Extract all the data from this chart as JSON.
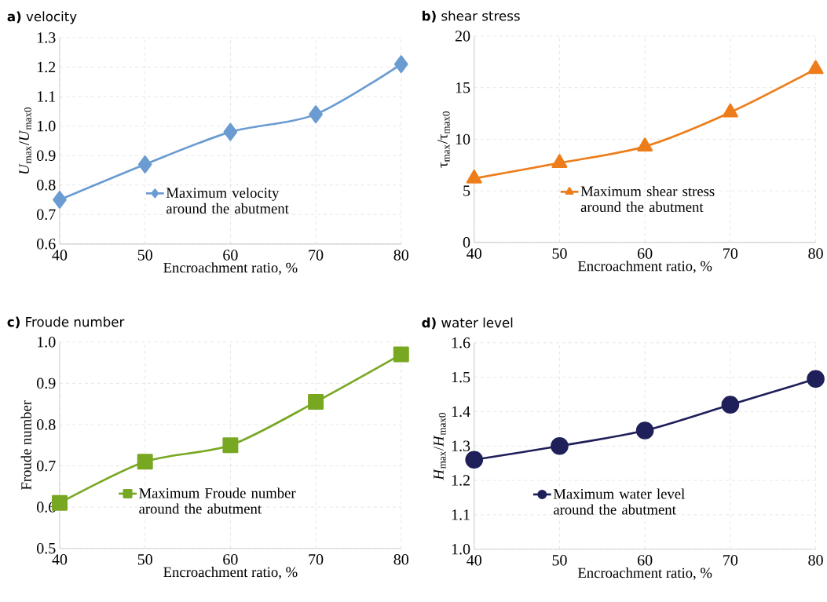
{
  "chart_data": [
    {
      "type": "line",
      "title": "**a)** velocity",
      "xlabel": "Encroachment ratio, %",
      "ylabel": "*U*$_{max}$/*U*$_{max0}$",
      "x": [
        40,
        50,
        60,
        70,
        80
      ],
      "xlim": [
        40,
        80
      ],
      "xticks": [
        40,
        50,
        60,
        70,
        80
      ],
      "ylim": [
        0.6,
        1.3
      ],
      "yticks": [
        {
          "value": 0.6,
          "label": "0.6"
        },
        {
          "value": 0.7,
          "label": "0.7"
        },
        {
          "value": 0.8,
          "label": "0.8"
        },
        {
          "value": 0.9,
          "label": "0.9"
        },
        {
          "value": 1.0,
          "label": "1.0"
        },
        {
          "value": 1.1,
          "label": "1.1"
        },
        {
          "value": 1.2,
          "label": "1.2"
        },
        {
          "value": 1.3,
          "label": "1.3"
        }
      ],
      "grid": true,
      "legend": "bottom right",
      "marker": "diamond",
      "series": [
        {
          "name": "Maximum velocity around the abutment",
          "color": "#6a9bd1",
          "values": [
            0.75,
            0.87,
            0.98,
            1.04,
            1.21
          ]
        }
      ]
    },
    {
      "type": "line",
      "title": "**b)** shear stress",
      "xlabel": "Encroachment ratio, %",
      "ylabel": "τ$_{max}$/τ$_{max0}$",
      "x": [
        40,
        50,
        60,
        70,
        80
      ],
      "xlim": [
        40,
        80
      ],
      "xticks": [
        40,
        50,
        60,
        70,
        80
      ],
      "ylim": [
        0,
        20
      ],
      "yticks": [
        0,
        5,
        10,
        15,
        20
      ],
      "grid": true,
      "legend": "bottom right",
      "marker": "triangle",
      "series": [
        {
          "name": "Maximum shear stress around the abutment",
          "color": "#ed7d1a",
          "values": [
            6.2,
            7.7,
            9.3,
            12.6,
            16.8
          ]
        }
      ]
    },
    {
      "type": "line",
      "title": "**c)** Froude number",
      "xlabel": "Encroachment ratio, %",
      "ylabel": "Froude number",
      "x": [
        40,
        50,
        60,
        70,
        80
      ],
      "xlim": [
        40,
        80
      ],
      "xticks": [
        40,
        50,
        60,
        70,
        80
      ],
      "ylim": [
        0.5,
        1.0
      ],
      "yticks": [
        {
          "value": 0.5,
          "label": "0.5"
        },
        {
          "value": 0.6,
          "label": "0.6"
        },
        {
          "value": 0.7,
          "label": "0.7"
        },
        {
          "value": 0.8,
          "label": "0.8"
        },
        {
          "value": 0.9,
          "label": "0.9"
        },
        {
          "value": 1.0,
          "label": "1.0"
        }
      ],
      "grid": true,
      "legend": "bottom",
      "marker": "square",
      "series": [
        {
          "name": "Maximum Froude number around the abutment",
          "color": "#78a822",
          "values": [
            0.61,
            0.71,
            0.75,
            0.855,
            0.97
          ]
        }
      ]
    },
    {
      "type": "line",
      "title": "**d)** water level",
      "xlabel": "Encroachment ratio, %",
      "ylabel": "*H*$_{max}$/*H*$_{max0}$",
      "x": [
        40,
        50,
        60,
        70,
        80
      ],
      "xlim": [
        40,
        80
      ],
      "xticks": [
        40,
        50,
        60,
        70,
        80
      ],
      "ylim": [
        1.0,
        1.6
      ],
      "yticks": [
        {
          "value": 1.0,
          "label": "1.0"
        },
        {
          "value": 1.1,
          "label": "1.1"
        },
        {
          "value": 1.2,
          "label": "1.2"
        },
        {
          "value": 1.3,
          "label": "1.3"
        },
        {
          "value": 1.4,
          "label": "1.4"
        },
        {
          "value": 1.5,
          "label": "1.5"
        },
        {
          "value": 1.6,
          "label": "1.6"
        }
      ],
      "grid": true,
      "legend": "bottom",
      "marker": "circle",
      "series": [
        {
          "name": "Maximum water level around the abutment",
          "color": "#1f1f5a",
          "values": [
            1.26,
            1.3,
            1.345,
            1.42,
            1.495
          ]
        }
      ]
    }
  ]
}
